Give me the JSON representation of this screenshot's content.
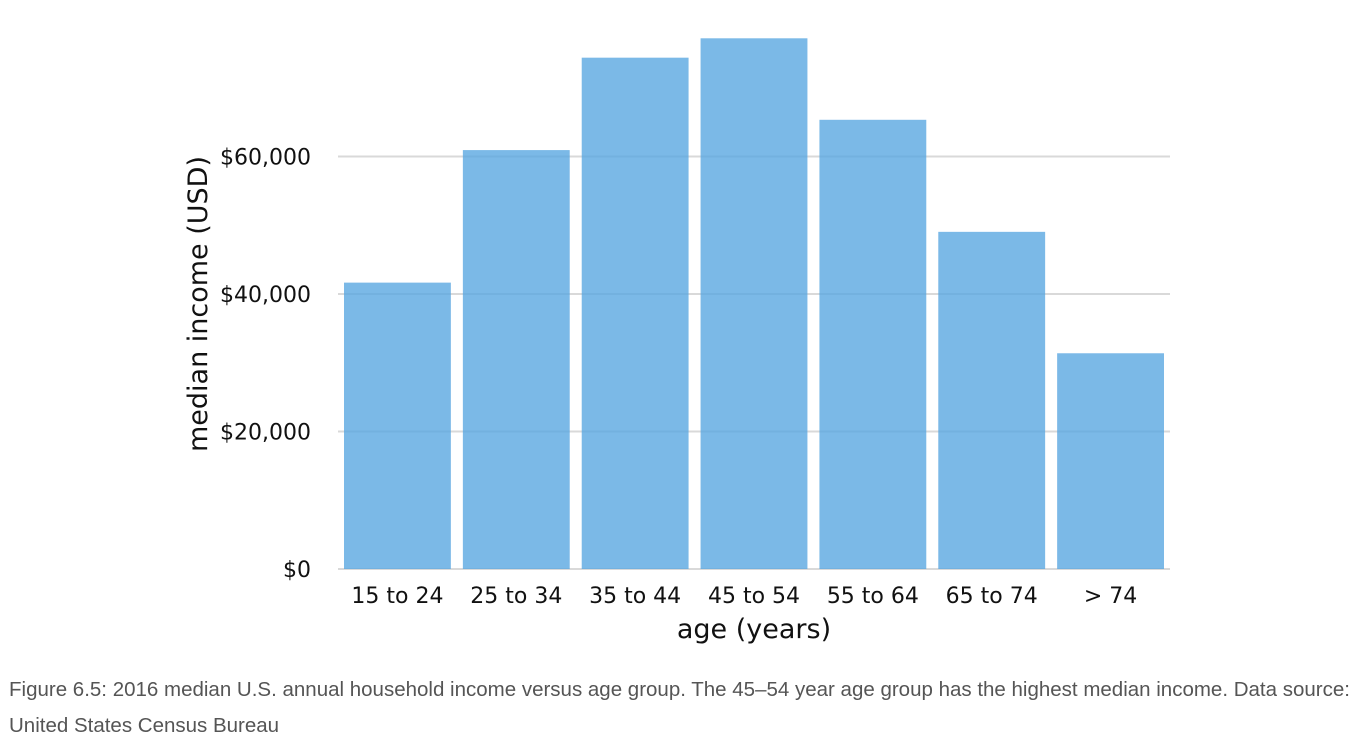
{
  "caption": "Figure 6.5: 2016 median U.S. annual household income versus age group. The 45–54 year age group has the highest median income. Data source: United States Census Bureau",
  "chart_data": {
    "type": "bar",
    "title": "",
    "xlabel": "age (years)",
    "ylabel": "median income (USD)",
    "categories": [
      "15 to 24",
      "25 to 34",
      "35 to 44",
      "45 to 54",
      "55 to 64",
      "65 to 74",
      "> 74"
    ],
    "values": [
      41655,
      60932,
      74375,
      77194,
      65339,
      49041,
      31380
    ],
    "ylim": [
      0,
      80000
    ],
    "yticks": [
      0,
      20000,
      40000,
      60000
    ],
    "ytick_labels": [
      "$0",
      "$20,000",
      "$40,000",
      "$60,000"
    ],
    "grid": "horizontal",
    "legend": "none",
    "bar_color": "#56a5e0",
    "grid_color": "#d9d9d9"
  }
}
